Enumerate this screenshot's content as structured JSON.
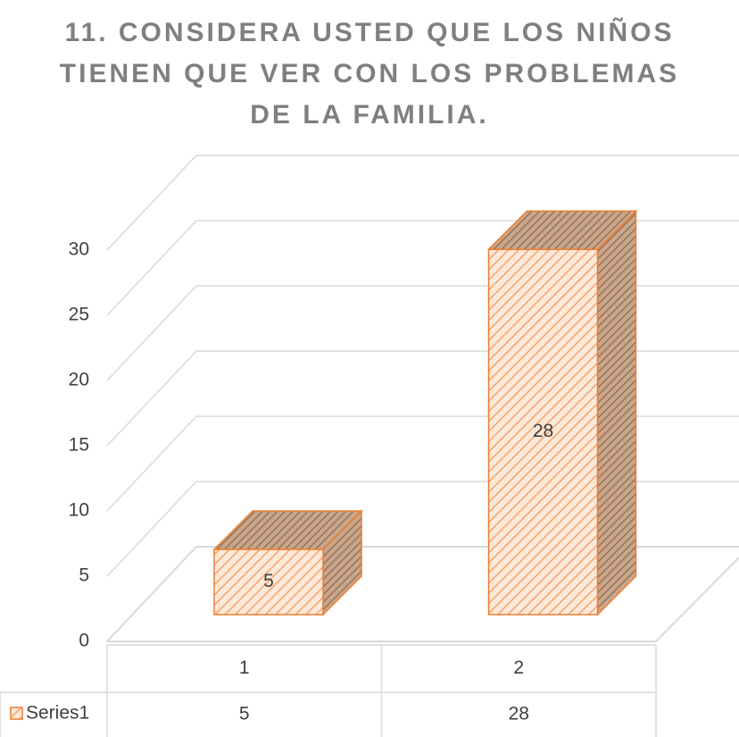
{
  "chart_data": {
    "type": "bar3d",
    "title": "11. CONSIDERA USTED QUE LOS NIÑOS TIENEN QUE VER CON LOS PROBLEMAS DE LA FAMILIA.",
    "categories": [
      "1",
      "2"
    ],
    "series": [
      {
        "name": "Series1",
        "color": "#ed7d31",
        "values": [
          5,
          28
        ]
      }
    ],
    "ylim": [
      0,
      30
    ],
    "yticks": [
      0,
      5,
      10,
      15,
      20,
      25,
      30
    ],
    "grid": true,
    "data_table": true
  }
}
